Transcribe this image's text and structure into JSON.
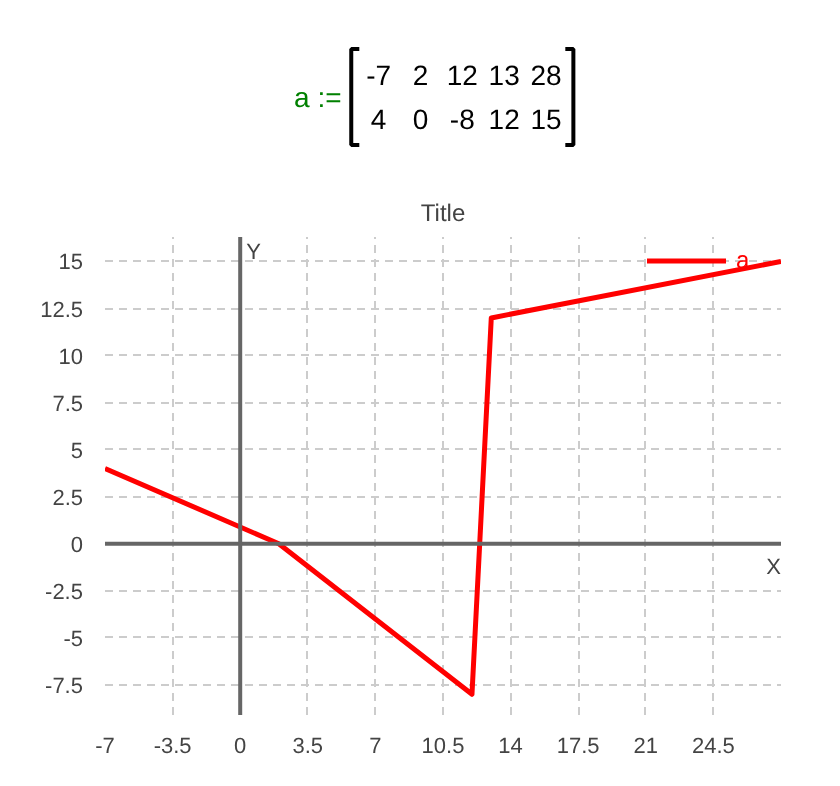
{
  "chart_data": [
    {
      "type": "heatmap",
      "annotations": [
        "a :="
      ],
      "categories": [
        null,
        null,
        null,
        null,
        null
      ],
      "y_categories": [
        null,
        null
      ],
      "cells": [
        [
          -7,
          2,
          12,
          13,
          28
        ],
        [
          4,
          0,
          -8,
          12,
          15
        ]
      ],
      "data_labels": true
    },
    {
      "type": "line",
      "title": "Title",
      "xlabel": "X",
      "ylabel": "Y",
      "x": [
        -7,
        2,
        12,
        13,
        28
      ],
      "series": [
        {
          "name": "a",
          "color": "#ff0000",
          "values": [
            4,
            0,
            -8,
            12,
            15
          ]
        }
      ],
      "xlim": [
        -7,
        28
      ],
      "xticks": [
        -7,
        -3.5,
        0,
        3.5,
        7,
        10.5,
        14,
        17.5,
        21,
        24.5
      ],
      "ylim": [
        -9.1,
        16.3
      ],
      "yticks": [
        -7.5,
        -5,
        -2.5,
        0,
        2.5,
        5,
        7.5,
        10,
        12.5,
        15
      ],
      "grid": true,
      "legend": "top right",
      "line_style": "solid",
      "marker": "none"
    }
  ]
}
